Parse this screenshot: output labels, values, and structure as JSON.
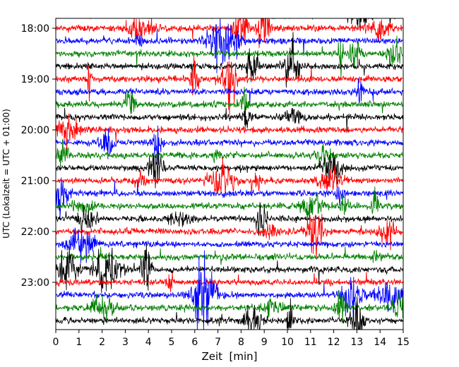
{
  "chart_data": {
    "type": "line",
    "title": "",
    "xlabel": "Zeit  [min]",
    "ylabel": "UTC (Lokalzeit = UTC + 01:00)",
    "xlim": [
      0,
      15
    ],
    "x_ticks": [
      0,
      1,
      2,
      3,
      4,
      5,
      6,
      7,
      8,
      9,
      10,
      11,
      12,
      13,
      14,
      15
    ],
    "y_tick_labels": [
      "18:00",
      "19:00",
      "20:00",
      "21:00",
      "22:00",
      "23:00"
    ],
    "trace_duration_min": 15,
    "first_trace_start": "17:45",
    "last_trace_start": "23:45",
    "trace_colors": [
      "#000000",
      "#ff0000",
      "#0000ff",
      "#008000"
    ],
    "grid": false,
    "legend": "none"
  }
}
